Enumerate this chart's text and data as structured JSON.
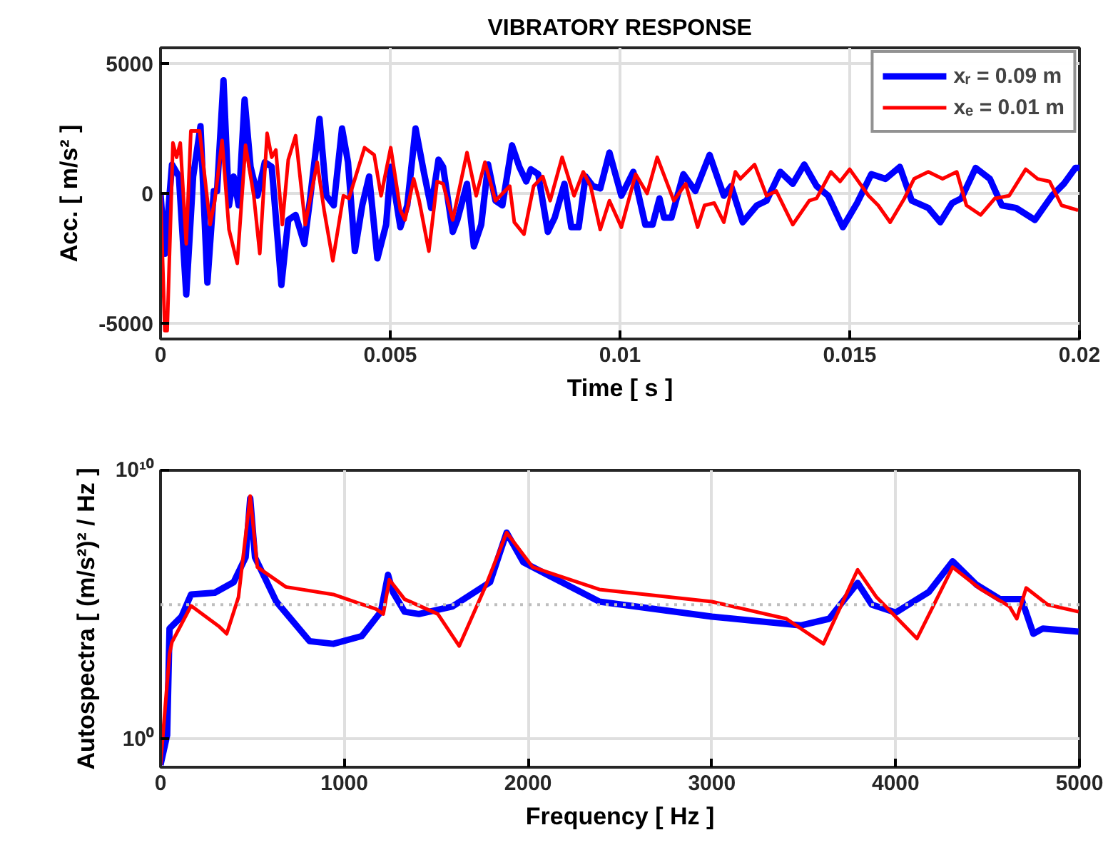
{
  "chart_data": [
    {
      "type": "line",
      "title": "VIBRATORY RESPONSE",
      "xlabel": "Time [ s ]",
      "ylabel": "Acc. [ m/s² ]",
      "xlim": [
        0,
        0.02
      ],
      "ylim": [
        -5600,
        5600
      ],
      "xticks": [
        0,
        0.005,
        0.01,
        0.015,
        0.02
      ],
      "yticks": [
        -5000,
        0,
        5000
      ],
      "grid": true,
      "legend": "top right",
      "series": [
        {
          "name": "xᵣ = 0.09 m",
          "color": "#0000ff",
          "x": [
            0.0,
            9.3e-05,
            0.00025,
            0.0004,
            0.00056,
            0.00071,
            0.00087,
            0.00102,
            0.00116,
            0.00123,
            0.00137,
            0.00149,
            0.00159,
            0.0017,
            0.00183,
            0.00196,
            0.00211,
            0.00227,
            0.00242,
            0.00263,
            0.00278,
            0.00294,
            0.00313,
            0.00325,
            0.00346,
            0.00361,
            0.00377,
            0.00395,
            0.00408,
            0.00423,
            0.00439,
            0.00454,
            0.00472,
            0.00491,
            0.00501,
            0.00522,
            0.00537,
            0.00555,
            0.00573,
            0.00589,
            0.00605,
            0.00615,
            0.00636,
            0.00646,
            0.00667,
            0.00682,
            0.00698,
            0.00713,
            0.00729,
            0.00744,
            0.00765,
            0.00781,
            0.00796,
            0.00806,
            0.00822,
            0.00843,
            0.00858,
            0.00879,
            0.00894,
            0.0091,
            0.00925,
            0.00941,
            0.00957,
            0.00977,
            0.01003,
            0.01029,
            0.01055,
            0.01071,
            0.01086,
            0.01096,
            0.01112,
            0.01138,
            0.01164,
            0.01195,
            0.01226,
            0.01242,
            0.01267,
            0.01298,
            0.01319,
            0.01349,
            0.01376,
            0.01401,
            0.01428,
            0.01453,
            0.01485,
            0.01516,
            0.01547,
            0.01578,
            0.01609,
            0.01635,
            0.01671,
            0.01697,
            0.01723,
            0.01743,
            0.01774,
            0.01805,
            0.01831,
            0.01862,
            0.01903,
            0.0194,
            0.01966,
            0.01991,
            0.02
          ],
          "values": [
            0,
            -2320,
            1110,
            650,
            -3890,
            650,
            2590,
            -3430,
            90,
            90,
            4350,
            -460,
            650,
            -460,
            3610,
            1020,
            -90,
            1200,
            1020,
            -3520,
            -1020,
            -830,
            -1940,
            -280,
            2870,
            -90,
            -460,
            2500,
            1200,
            -2220,
            -460,
            650,
            -2500,
            -1200,
            1020,
            -1300,
            -460,
            2500,
            830,
            -560,
            1300,
            1020,
            -1480,
            -1020,
            370,
            -2040,
            -1200,
            1110,
            -280,
            -460,
            1850,
            1020,
            460,
            930,
            740,
            -1480,
            -930,
            370,
            -1300,
            -1300,
            650,
            280,
            190,
            1570,
            -90,
            830,
            -1200,
            -1200,
            -190,
            -930,
            -930,
            740,
            90,
            1480,
            -90,
            280,
            -1110,
            -460,
            -280,
            830,
            370,
            1110,
            280,
            -90,
            -1300,
            -370,
            740,
            560,
            1020,
            -280,
            -560,
            -1110,
            -370,
            -190,
            980,
            560,
            -460,
            -560,
            -1020,
            -90,
            370,
            980,
            980
          ]
        },
        {
          "name": "xₑ = 0.01 m",
          "color": "#ff0000",
          "x": [
            0.0,
            9.3e-05,
            0.000145,
            0.00027,
            0.00035,
            0.00043,
            0.00056,
            0.00066,
            0.00085,
            0.00108,
            0.00118,
            0.00134,
            0.00149,
            0.00167,
            0.00185,
            0.00203,
            0.00216,
            0.00232,
            0.00242,
            0.00251,
            0.00265,
            0.00278,
            0.00294,
            0.00315,
            0.00341,
            0.00356,
            0.00375,
            0.00398,
            0.0041,
            0.00444,
            0.00465,
            0.0048,
            0.00501,
            0.00522,
            0.00532,
            0.00551,
            0.00563,
            0.00584,
            0.00602,
            0.00615,
            0.00636,
            0.00667,
            0.00687,
            0.00706,
            0.00729,
            0.0076,
            0.0077,
            0.00791,
            0.00812,
            0.00832,
            0.00848,
            0.00874,
            0.009,
            0.0092,
            0.00936,
            0.00957,
            0.00977,
            0.01003,
            0.01034,
            0.01059,
            0.01081,
            0.01117,
            0.01143,
            0.01169,
            0.01184,
            0.01205,
            0.01226,
            0.01251,
            0.01262,
            0.01293,
            0.01319,
            0.0134,
            0.01376,
            0.01412,
            0.01428,
            0.01459,
            0.01479,
            0.015,
            0.01541,
            0.01562,
            0.01588,
            0.01619,
            0.0164,
            0.01671,
            0.01702,
            0.01733,
            0.01754,
            0.01785,
            0.01816,
            0.01847,
            0.01883,
            0.01909,
            0.01935,
            0.01961,
            0.01997
          ],
          "values": [
            0,
            -5280,
            -5280,
            1940,
            1390,
            1940,
            -1940,
            2400,
            2400,
            -1200,
            -280,
            2040,
            -1390,
            -2690,
            1850,
            -90,
            -2310,
            2310,
            1390,
            1670,
            -1200,
            1300,
            2220,
            -1200,
            1200,
            -650,
            -2590,
            -90,
            -190,
            1760,
            1480,
            -90,
            1760,
            -650,
            -1020,
            560,
            -280,
            -2220,
            460,
            370,
            -1020,
            1570,
            -90,
            1200,
            -280,
            280,
            -1110,
            -1570,
            280,
            650,
            -280,
            1390,
            -90,
            830,
            280,
            -1390,
            -280,
            -1300,
            740,
            0,
            1390,
            -280,
            370,
            -1300,
            -460,
            -370,
            -1110,
            830,
            560,
            1110,
            -90,
            90,
            -1200,
            -280,
            -190,
            830,
            460,
            930,
            -90,
            -460,
            -1110,
            -190,
            560,
            830,
            560,
            830,
            -460,
            -830,
            -190,
            -90,
            930,
            560,
            460,
            -460,
            -650
          ]
        }
      ]
    },
    {
      "type": "line",
      "xlabel": "Frequency [ Hz ]",
      "ylabel": "Autospectra [ (m/s²)² / Hz ]",
      "log": "y",
      "xlim": [
        0,
        5000
      ],
      "ylim": [
        0.09,
        10000000000.0
      ],
      "xticks": [
        0,
        1000,
        2000,
        3000,
        4000,
        5000
      ],
      "yticks": [
        {
          "value": 1,
          "label": "10⁰"
        },
        {
          "value": 10000000000.0,
          "label": "10¹⁰"
        }
      ],
      "grid": true,
      "ref_lines": [
        {
          "axis": "y",
          "value": 100000.0,
          "color": "#bfbfbf",
          "line_style": "dotted"
        }
      ],
      "series": [
        {
          "color": "#0000ff",
          "x": [
            0,
            36,
            49,
            114,
            166,
            295,
            398,
            463,
            488,
            514,
            630,
            811,
            940,
            1095,
            1199,
            1238,
            1264,
            1328,
            1406,
            1587,
            1793,
            1883,
            1974,
            2388,
            3000,
            3483,
            3638,
            3793,
            3870,
            4000,
            4181,
            4310,
            4439,
            4568,
            4685,
            4749,
            4801,
            4995
          ],
          "values": [
            0.11,
            1.4,
            13000.0,
            36000.0,
            240000.0,
            280000.0,
            690000.0,
            5800000.0,
            910000000.0,
            5800000.0,
            130000.0,
            4400.0,
            3500.0,
            6800.0,
            55000.0,
            1300000.0,
            300000.0,
            55000.0,
            45000.0,
            85000.0,
            690000.0,
            48000000.0,
            3800000.0,
            130000.0,
            36000.0,
            17000.0,
            30000.0,
            650000.0,
            100000.0,
            51000.0,
            300000.0,
            4100000.0,
            560000.0,
            160000.0,
            160000.0,
            8300.0,
            13000.0,
            10000.0
          ]
        },
        {
          "color": "#ff0000",
          "x": [
            0,
            49,
            62,
            166,
            321,
            360,
            424,
            488,
            527,
            682,
            940,
            1173,
            1212,
            1245,
            1328,
            1509,
            1625,
            1767,
            1883,
            2025,
            2388,
            3000,
            3405,
            3607,
            3793,
            3896,
            4116,
            4310,
            4465,
            4620,
            4659,
            4710,
            4827,
            4995
          ],
          "values": [
            0.11,
            1500.0,
            4000.0,
            91000.0,
            15000.0,
            8300.0,
            190000.0,
            1100000000.0,
            2500000.0,
            460000.0,
            240000.0,
            69000.0,
            45000.0,
            850000.0,
            160000.0,
            45000.0,
            2900.0,
            460000.0,
            48000000.0,
            2500000.0,
            370000.0,
            130000.0,
            30000.0,
            3500.0,
            2000000.0,
            190000.0,
            5500.0,
            2500000.0,
            370000.0,
            85000.0,
            30000.0,
            420000.0,
            100000.0,
            55000.0
          ]
        }
      ]
    }
  ]
}
